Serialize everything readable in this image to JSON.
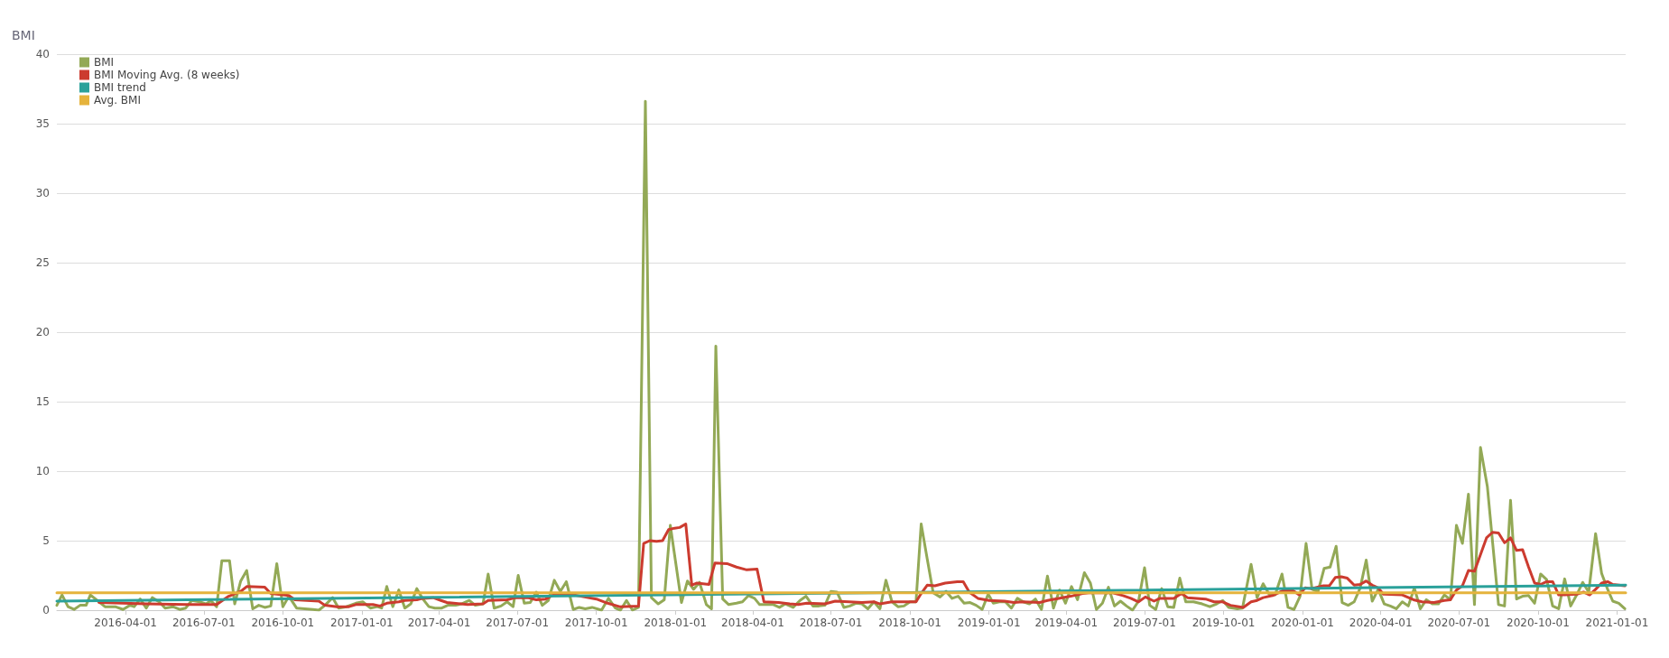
{
  "chart_data": {
    "type": "line",
    "ylabel": "BMI",
    "legend": "top left",
    "grid": "y",
    "marker": "none",
    "line_style": "solid",
    "xlim": [
      "2016-01-12",
      "2021-01-11"
    ],
    "xticks": [
      "2016-04-01",
      "2016-07-01",
      "2016-10-01",
      "2017-01-01",
      "2017-04-01",
      "2017-07-01",
      "2017-10-01",
      "2018-01-01",
      "2018-04-01",
      "2018-07-01",
      "2018-10-01",
      "2019-01-01",
      "2019-04-01",
      "2019-07-01",
      "2019-10-01",
      "2020-01-01",
      "2020-04-01",
      "2020-07-01",
      "2020-10-01",
      "2021-01-01"
    ],
    "ylim": [
      0,
      40
    ],
    "yticks": [
      0,
      5,
      10,
      15,
      20,
      25,
      30,
      35,
      40
    ],
    "series": [
      {
        "name": "BMI",
        "color": "#93a956",
        "x": [
          "2016-01-12",
          "2016-01-18",
          "2016-01-25",
          "2016-02-01",
          "2016-02-08",
          "2016-02-15",
          "2016-02-20",
          "2016-03-01",
          "2016-03-08",
          "2016-03-20",
          "2016-03-29",
          "2016-04-06",
          "2016-04-11",
          "2016-04-18",
          "2016-04-25",
          "2016-05-02",
          "2016-05-10",
          "2016-05-17",
          "2016-05-26",
          "2016-06-03",
          "2016-06-10",
          "2016-06-17",
          "2016-06-26",
          "2016-07-04",
          "2016-07-09",
          "2016-07-16",
          "2016-07-22",
          "2016-07-31",
          "2016-08-06",
          "2016-08-13",
          "2016-08-20",
          "2016-08-27",
          "2016-09-03",
          "2016-09-10",
          "2016-09-17",
          "2016-09-24",
          "2016-10-01",
          "2016-10-08",
          "2016-10-17",
          "2016-11-05",
          "2016-11-12",
          "2016-11-19",
          "2016-11-28",
          "2016-12-05",
          "2016-12-14",
          "2016-12-25",
          "2017-01-02",
          "2017-01-11",
          "2017-01-19",
          "2017-01-24",
          "2017-01-30",
          "2017-02-06",
          "2017-02-13",
          "2017-02-20",
          "2017-02-27",
          "2017-03-06",
          "2017-03-13",
          "2017-03-20",
          "2017-03-27",
          "2017-04-04",
          "2017-04-11",
          "2017-04-20",
          "2017-04-27",
          "2017-05-06",
          "2017-05-13",
          "2017-05-22",
          "2017-05-28",
          "2017-06-04",
          "2017-06-12",
          "2017-06-19",
          "2017-06-26",
          "2017-07-02",
          "2017-07-09",
          "2017-07-16",
          "2017-07-23",
          "2017-07-30",
          "2017-08-06",
          "2017-08-13",
          "2017-08-20",
          "2017-08-27",
          "2017-09-04",
          "2017-09-11",
          "2017-09-18",
          "2017-09-26",
          "2017-10-07",
          "2017-10-15",
          "2017-10-23",
          "2017-10-29",
          "2017-11-05",
          "2017-11-12",
          "2017-11-19",
          "2017-11-27",
          "2017-12-04",
          "2017-12-12",
          "2017-12-19",
          "2017-12-26",
          "2018-01-08",
          "2018-01-15",
          "2018-01-22",
          "2018-01-29",
          "2018-02-06",
          "2018-02-12",
          "2018-02-17",
          "2018-02-25",
          "2018-03-04",
          "2018-03-13",
          "2018-03-20",
          "2018-03-27",
          "2018-04-03",
          "2018-04-09",
          "2018-04-17",
          "2018-04-25",
          "2018-05-02",
          "2018-05-09",
          "2018-05-18",
          "2018-05-26",
          "2018-06-02",
          "2018-06-10",
          "2018-06-17",
          "2018-06-24",
          "2018-07-01",
          "2018-07-08",
          "2018-07-16",
          "2018-07-23",
          "2018-07-30",
          "2018-08-06",
          "2018-08-13",
          "2018-08-20",
          "2018-08-27",
          "2018-09-03",
          "2018-09-10",
          "2018-09-17",
          "2018-09-24",
          "2018-10-01",
          "2018-10-08",
          "2018-10-14",
          "2018-10-21",
          "2018-10-28",
          "2018-11-05",
          "2018-11-12",
          "2018-11-19",
          "2018-11-26",
          "2018-12-03",
          "2018-12-10",
          "2018-12-17",
          "2018-12-24",
          "2018-12-31",
          "2019-01-06",
          "2019-01-13",
          "2019-01-20",
          "2019-01-27",
          "2019-02-03",
          "2019-02-10",
          "2019-02-17",
          "2019-02-24",
          "2019-03-03",
          "2019-03-10",
          "2019-03-17",
          "2019-03-24",
          "2019-03-31",
          "2019-04-07",
          "2019-04-14",
          "2019-04-22",
          "2019-04-29",
          "2019-05-06",
          "2019-05-13",
          "2019-05-20",
          "2019-05-27",
          "2019-06-03",
          "2019-06-10",
          "2019-06-17",
          "2019-06-24",
          "2019-07-01",
          "2019-07-07",
          "2019-07-14",
          "2019-07-21",
          "2019-07-28",
          "2019-08-04",
          "2019-08-11",
          "2019-08-18",
          "2019-08-27",
          "2019-09-06",
          "2019-09-15",
          "2019-09-23",
          "2019-09-30",
          "2019-10-07",
          "2019-10-17",
          "2019-10-23",
          "2019-11-02",
          "2019-11-09",
          "2019-11-16",
          "2019-11-23",
          "2019-11-30",
          "2019-12-08",
          "2019-12-15",
          "2019-12-22",
          "2019-12-29",
          "2020-01-05",
          "2020-01-12",
          "2020-01-19",
          "2020-01-26",
          "2020-02-02",
          "2020-02-09",
          "2020-02-16",
          "2020-02-23",
          "2020-03-01",
          "2020-03-08",
          "2020-03-15",
          "2020-03-22",
          "2020-03-29",
          "2020-04-05",
          "2020-04-12",
          "2020-04-19",
          "2020-04-26",
          "2020-05-03",
          "2020-05-10",
          "2020-05-17",
          "2020-05-24",
          "2020-05-31",
          "2020-06-07",
          "2020-06-14",
          "2020-06-21",
          "2020-06-28",
          "2020-07-05",
          "2020-07-12",
          "2020-07-19",
          "2020-07-26",
          "2020-08-03",
          "2020-08-10",
          "2020-08-16",
          "2020-08-23",
          "2020-08-30",
          "2020-09-06",
          "2020-09-13",
          "2020-09-20",
          "2020-09-27",
          "2020-10-04",
          "2020-10-11",
          "2020-10-18",
          "2020-10-25",
          "2020-11-01",
          "2020-11-08",
          "2020-11-15",
          "2020-11-22",
          "2020-11-29",
          "2020-12-07",
          "2020-12-14",
          "2020-12-21",
          "2020-12-27",
          "2021-01-03",
          "2021-01-10"
        ],
        "values": [
          0.35,
          1.1,
          0.25,
          0.05,
          0.35,
          0.35,
          1.1,
          0.6,
          0.25,
          0.25,
          0.05,
          0.35,
          0.25,
          0.8,
          0.15,
          0.9,
          0.6,
          0.15,
          0.25,
          0.05,
          0.15,
          0.7,
          0.6,
          0.45,
          0.7,
          0.25,
          3.55,
          3.55,
          0.45,
          2.1,
          2.85,
          0.1,
          0.35,
          0.2,
          0.3,
          3.35,
          0.25,
          1.0,
          0.15,
          0.05,
          0,
          0.35,
          0.9,
          0.15,
          0.25,
          0.5,
          0.6,
          0.15,
          0.25,
          0.15,
          1.7,
          0.25,
          1.45,
          0.15,
          0.45,
          1.55,
          0.8,
          0.25,
          0.15,
          0.15,
          0.35,
          0.35,
          0.45,
          0.7,
          0.35,
          0.45,
          2.6,
          0.15,
          0.3,
          0.6,
          0.25,
          2.5,
          0.5,
          0.55,
          1.3,
          0.35,
          0.7,
          2.15,
          1.35,
          2.05,
          0.05,
          0.2,
          0.1,
          0.2,
          0,
          0.85,
          0.15,
          0,
          0.7,
          0,
          0.2,
          36.6,
          0.9,
          0.45,
          0.75,
          6.1,
          0.55,
          2.1,
          1.5,
          2.0,
          0.4,
          0.1,
          19.0,
          0.8,
          0.4,
          0.5,
          0.6,
          1.05,
          0.85,
          0.4,
          0.4,
          0.4,
          0.2,
          0.45,
          0.2,
          0.7,
          1.0,
          0.3,
          0.3,
          0.35,
          1.35,
          1.3,
          0.2,
          0.3,
          0.5,
          0.45,
          0.1,
          0.6,
          0.1,
          2.15,
          0.6,
          0.25,
          0.3,
          0.6,
          0.6,
          6.2,
          3.7,
          1.25,
          0.95,
          1.35,
          0.85,
          1.0,
          0.5,
          0.55,
          0.35,
          0.05,
          1.15,
          0.5,
          0.6,
          0.6,
          0.15,
          0.85,
          0.6,
          0.45,
          0.8,
          0.05,
          2.45,
          0.15,
          1.45,
          0.5,
          1.7,
          0.75,
          2.7,
          1.95,
          0.05,
          0.5,
          1.65,
          0.3,
          0.65,
          0.3,
          0,
          0.65,
          3.05,
          0.35,
          0.05,
          1.55,
          0.25,
          0.2,
          2.3,
          0.6,
          0.6,
          0.45,
          0.25,
          0.45,
          0.7,
          0.2,
          0.1,
          0.15,
          3.3,
          0.9,
          1.9,
          1.15,
          1.1,
          2.6,
          0.2,
          0.05,
          1.0,
          4.8,
          1.5,
          1.35,
          3.0,
          3.1,
          4.6,
          0.55,
          0.35,
          0.6,
          1.6,
          3.6,
          0.65,
          1.5,
          0.45,
          0.3,
          0.1,
          0.6,
          0.3,
          1.6,
          0.1,
          0.75,
          0.45,
          0.45,
          1.1,
          0.75,
          6.1,
          4.8,
          8.35,
          0.4,
          11.7,
          8.9,
          4.3,
          0.4,
          0.3,
          7.9,
          0.8,
          1.0,
          1.05,
          0.5,
          2.6,
          2.2,
          0.3,
          0.1,
          2.25,
          0.3,
          1.1,
          2.0,
          1.3,
          5.5,
          2.65,
          1.5,
          0.65,
          0.5,
          0.1
        ]
      },
      {
        "name": "BMI Moving Avg. (8 weeks)",
        "color": "#cc3b2f",
        "x": [
          "2016-03-01",
          "2016-04-25",
          "2016-06-12",
          "2016-07-16",
          "2016-07-30",
          "2016-08-13",
          "2016-08-20",
          "2016-09-10",
          "2016-09-17",
          "2016-10-08",
          "2016-10-15",
          "2016-11-12",
          "2016-11-19",
          "2016-12-03",
          "2016-12-17",
          "2016-12-25",
          "2017-01-14",
          "2017-01-22",
          "2017-01-30",
          "2017-02-13",
          "2017-02-20",
          "2017-03-06",
          "2017-03-13",
          "2017-03-25",
          "2017-04-03",
          "2017-04-10",
          "2017-05-04",
          "2017-05-22",
          "2017-05-28",
          "2017-06-19",
          "2017-06-29",
          "2017-07-13",
          "2017-07-23",
          "2017-08-03",
          "2017-08-15",
          "2017-08-27",
          "2017-09-13",
          "2017-10-01",
          "2017-10-14",
          "2017-10-28",
          "2017-11-19",
          "2017-11-25",
          "2017-12-02",
          "2017-12-10",
          "2017-12-17",
          "2017-12-24",
          "2017-12-31",
          "2018-01-06",
          "2018-01-13",
          "2018-01-20",
          "2018-01-26",
          "2018-02-09",
          "2018-02-16",
          "2018-03-02",
          "2018-03-13",
          "2018-03-25",
          "2018-04-06",
          "2018-04-14",
          "2018-05-01",
          "2018-05-14",
          "2018-05-24",
          "2018-06-03",
          "2018-06-24",
          "2018-07-06",
          "2018-07-22",
          "2018-08-06",
          "2018-08-20",
          "2018-08-27",
          "2018-09-10",
          "2018-10-08",
          "2018-10-14",
          "2018-10-21",
          "2018-10-30",
          "2018-11-11",
          "2018-11-25",
          "2018-12-02",
          "2018-12-09",
          "2018-12-19",
          "2019-01-01",
          "2019-01-19",
          "2019-01-30",
          "2019-02-09",
          "2019-03-01",
          "2019-03-10",
          "2019-03-23",
          "2019-04-06",
          "2019-04-20",
          "2019-04-27",
          "2019-05-25",
          "2019-06-06",
          "2019-06-15",
          "2019-06-24",
          "2019-07-02",
          "2019-07-12",
          "2019-07-19",
          "2019-08-04",
          "2019-08-13",
          "2019-08-20",
          "2019-09-10",
          "2019-09-20",
          "2019-09-30",
          "2019-10-09",
          "2019-10-24",
          "2019-11-02",
          "2019-11-09",
          "2019-11-16",
          "2019-11-27",
          "2019-12-09",
          "2019-12-21",
          "2019-12-28",
          "2020-01-04",
          "2020-01-11",
          "2020-01-25",
          "2020-02-01",
          "2020-02-08",
          "2020-02-15",
          "2020-02-22",
          "2020-03-01",
          "2020-03-08",
          "2020-03-15",
          "2020-03-22",
          "2020-03-29",
          "2020-04-04",
          "2020-04-26",
          "2020-05-09",
          "2020-05-19",
          "2020-06-02",
          "2020-06-14",
          "2020-06-21",
          "2020-06-28",
          "2020-07-05",
          "2020-07-12",
          "2020-07-19",
          "2020-07-26",
          "2020-08-02",
          "2020-08-09",
          "2020-08-16",
          "2020-08-23",
          "2020-08-30",
          "2020-09-06",
          "2020-09-13",
          "2020-09-20",
          "2020-09-27",
          "2020-10-04",
          "2020-10-11",
          "2020-10-18",
          "2020-10-25",
          "2020-11-01",
          "2020-11-15",
          "2020-11-23",
          "2020-11-30",
          "2020-12-07",
          "2020-12-14",
          "2020-12-21",
          "2020-12-27",
          "2021-01-10"
        ],
        "values": [
          0.55,
          0.45,
          0.4,
          0.4,
          1.0,
          1.35,
          1.7,
          1.65,
          1.2,
          1.05,
          0.75,
          0.65,
          0.35,
          0.25,
          0.25,
          0.4,
          0.4,
          0.3,
          0.5,
          0.6,
          0.7,
          0.75,
          0.85,
          0.9,
          0.7,
          0.55,
          0.4,
          0.45,
          0.7,
          0.75,
          0.9,
          0.9,
          0.75,
          0.8,
          1.2,
          1.2,
          1.0,
          0.8,
          0.5,
          0.25,
          0.3,
          4.8,
          5.0,
          4.95,
          5.0,
          5.8,
          5.9,
          5.95,
          6.2,
          1.8,
          1.95,
          1.85,
          3.4,
          3.35,
          3.1,
          2.9,
          2.95,
          0.6,
          0.55,
          0.45,
          0.4,
          0.5,
          0.45,
          0.65,
          0.6,
          0.55,
          0.6,
          0.45,
          0.6,
          0.6,
          1.2,
          1.8,
          1.75,
          1.95,
          2.05,
          2.05,
          1.3,
          0.85,
          0.7,
          0.65,
          0.55,
          0.6,
          0.55,
          0.7,
          0.85,
          1.0,
          1.2,
          1.25,
          1.25,
          1.05,
          0.85,
          0.6,
          0.95,
          0.65,
          0.85,
          0.85,
          1.2,
          0.9,
          0.8,
          0.6,
          0.6,
          0.35,
          0.2,
          0.6,
          0.7,
          0.9,
          1.05,
          1.4,
          1.4,
          1.1,
          1.6,
          1.55,
          1.75,
          1.75,
          2.35,
          2.4,
          2.3,
          1.8,
          1.85,
          2.1,
          1.8,
          1.6,
          1.15,
          1.1,
          0.75,
          0.6,
          0.55,
          0.7,
          0.75,
          1.45,
          1.75,
          2.85,
          2.8,
          4.0,
          5.2,
          5.6,
          5.55,
          4.85,
          5.2,
          4.3,
          4.35,
          3.1,
          1.95,
          1.85,
          2.05,
          2.05,
          1.1,
          1.1,
          1.15,
          1.3,
          1.1,
          1.5,
          1.95,
          2.05,
          1.85,
          1.75
        ]
      },
      {
        "name": "BMI trend",
        "color": "#2aa19a",
        "x": [
          "2016-01-12",
          "2021-01-11"
        ],
        "values": [
          0.65,
          1.8
        ]
      },
      {
        "name": "Avg. BMI",
        "color": "#e5b33c",
        "x": [
          "2016-01-12",
          "2021-01-11"
        ],
        "values": [
          1.25,
          1.25
        ]
      }
    ]
  }
}
